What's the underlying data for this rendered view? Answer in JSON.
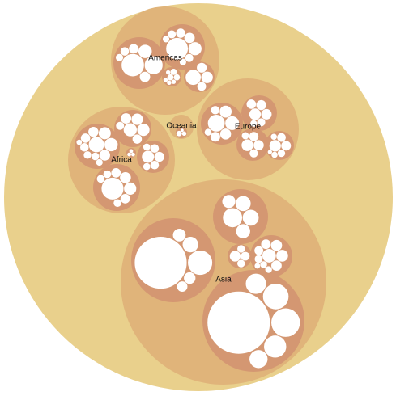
{
  "chart_data": {
    "type": "circle-packing",
    "title": "",
    "hierarchy_levels": [
      "root",
      "region",
      "subregion",
      "country"
    ],
    "regions": [
      {
        "name": "Asia",
        "subregions": [
          {
            "values": [
              100,
              22,
              9,
              6,
              5,
              4
            ]
          },
          {
            "values": [
              95,
              20,
              16,
              12,
              10,
              8
            ]
          },
          {
            "values": [
              26,
              18,
              16,
              14,
              12
            ]
          },
          {
            "values": [
              12,
              9,
              8,
              7,
              6,
              5,
              4,
              3,
              3,
              2
            ]
          },
          {
            "values": [
              6,
              4,
              3,
              3
            ]
          }
        ]
      },
      {
        "name": "Americas",
        "subregions": [
          {
            "values": [
              28,
              18,
              10,
              6,
              5,
              4,
              3
            ]
          },
          {
            "values": [
              22,
              8,
              5,
              4,
              3,
              3,
              2,
              2
            ]
          },
          {
            "values": [
              12,
              7,
              5,
              4
            ]
          },
          {
            "values": [
              2,
              2,
              2,
              1,
              1,
              1,
              1
            ]
          }
        ]
      },
      {
        "name": "Africa",
        "subregions": [
          {
            "values": [
              16,
              12,
              10,
              8,
              7,
              6,
              5,
              4,
              4,
              3,
              2
            ]
          },
          {
            "values": [
              16,
              5,
              4,
              3,
              3,
              2,
              2,
              2
            ]
          },
          {
            "values": [
              8,
              7,
              6,
              5,
              4,
              3
            ]
          },
          {
            "values": [
              6,
              4,
              3,
              3,
              2,
              2
            ]
          },
          {
            "values": [
              1,
              1,
              1
            ]
          }
        ]
      },
      {
        "name": "Europe",
        "subregions": [
          {
            "values": [
              12,
              8,
              6,
              5,
              4,
              3,
              2
            ]
          },
          {
            "values": [
              12,
              10,
              9,
              8,
              6,
              4
            ]
          },
          {
            "values": [
              8,
              6,
              5,
              4,
              3
            ]
          },
          {
            "values": [
              7,
              5,
              4,
              3,
              2,
              2,
              1
            ]
          }
        ]
      },
      {
        "name": "Oceania",
        "subregions": [
          {
            "values": [
              3,
              2,
              1
            ]
          }
        ]
      }
    ],
    "colors": {
      "root": "#e9d08c",
      "region": "#e0b47a",
      "subregion": "#d49772",
      "leaf": "#ffffff",
      "label": "#111111"
    }
  }
}
